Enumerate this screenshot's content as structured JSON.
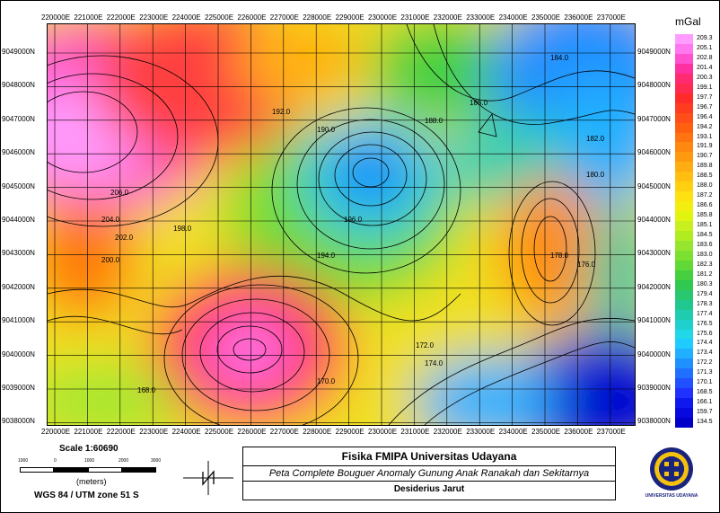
{
  "map": {
    "unit": "mGal",
    "top_easting_labels": [
      "220000E",
      "221000E",
      "222000E",
      "223000E",
      "224000E",
      "225000E",
      "226000E",
      "227000E",
      "228000E",
      "229000E",
      "230000E",
      "231000E",
      "232000E",
      "233000E",
      "234000E",
      "235000E",
      "236000E",
      "237000E"
    ],
    "northing_labels": [
      "9049000N",
      "9048000N",
      "9047000N",
      "9046000N",
      "9045000N",
      "9044000N",
      "9043000N",
      "9042000N",
      "9041000N",
      "9040000N",
      "9039000N",
      "9038000N"
    ],
    "colorbar_values": [
      "209.3",
      "205.1",
      "202.8",
      "201.4",
      "200.3",
      "199.1",
      "197.7",
      "196.7",
      "196.4",
      "194.2",
      "193.1",
      "191.9",
      "190.7",
      "189.8",
      "188.5",
      "188.0",
      "187.2",
      "186.6",
      "185.8",
      "185.1",
      "184.5",
      "183.6",
      "183.0",
      "182.3",
      "181.2",
      "180.3",
      "179.4",
      "178.3",
      "177.4",
      "176.5",
      "175.6",
      "174.4",
      "173.4",
      "172.2",
      "171.3",
      "170.1",
      "168.5",
      "166.1",
      "159.7",
      "134.5"
    ],
    "colorbar_colors": [
      "#ff9cff",
      "#ff78f0",
      "#ff50d0",
      "#ff30a0",
      "#ff2a70",
      "#ff2a50",
      "#ff2a2a",
      "#ff3c20",
      "#ff4e18",
      "#ff6010",
      "#ff7410",
      "#ff8810",
      "#ff9a10",
      "#ffac10",
      "#ffbe10",
      "#ffd010",
      "#ffe010",
      "#f4ee10",
      "#e0f410",
      "#c8f020",
      "#b0ec20",
      "#96e630",
      "#7ce030",
      "#60d838",
      "#46d040",
      "#30c850",
      "#28c870",
      "#20c890",
      "#20ccb0",
      "#20d0cc",
      "#20d8e8",
      "#20ccff",
      "#20b0ff",
      "#2090ff",
      "#2070ff",
      "#2050ff",
      "#2030ff",
      "#1018f0",
      "#0808e0",
      "#0000c8"
    ],
    "contour_labels": [
      "206.0",
      "204.0",
      "202.0",
      "200.0",
      "198.0",
      "196.0",
      "194.0",
      "192.0",
      "190.0",
      "188.0",
      "186.0",
      "184.0",
      "182.0",
      "180.0",
      "178.0",
      "176.0",
      "174.0",
      "172.0",
      "170.0",
      "168.0"
    ]
  },
  "legend": {
    "scale": "Scale 1:60690",
    "scalebar_labels": [
      "1000",
      "0",
      "1000",
      "2000",
      "3000"
    ],
    "meters": "(meters)",
    "crs": "WGS 84 / UTM zone 51 S"
  },
  "title_block": {
    "line1": "Fisika FMIPA Universitas Udayana",
    "line2": "Peta Complete Bouguer Anomaly Gunung Anak Ranakah dan Sekitarnya",
    "line3": "Desiderius Jarut"
  },
  "logo": {
    "caption": "UNIVERSITAS UDAYANA",
    "icon": "university-seal-icon"
  }
}
